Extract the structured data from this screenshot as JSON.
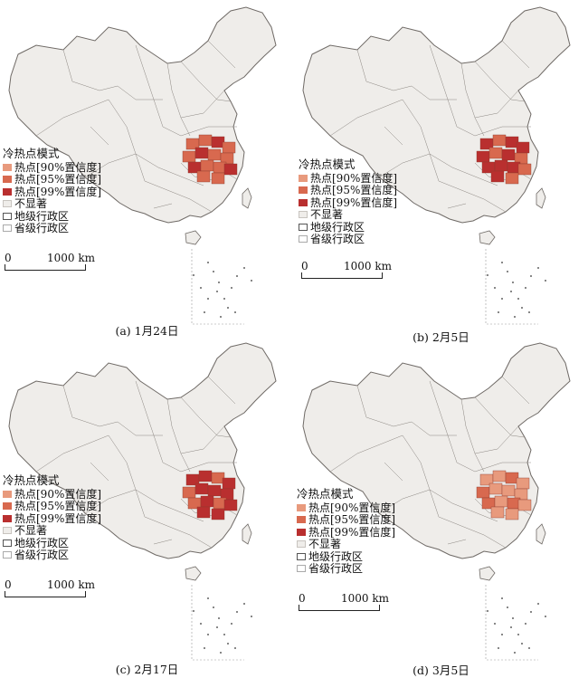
{
  "legend": {
    "title": "冷热点模式",
    "items": [
      {
        "key": "hot90",
        "label": "热点[90%置信度]",
        "color": "#e89a7d"
      },
      {
        "key": "hot95",
        "label": "热点[95%置信度]",
        "color": "#d8694f"
      },
      {
        "key": "hot99",
        "label": "热点[99%置信度]",
        "color": "#b92f2f"
      },
      {
        "key": "ns",
        "label": "不显著",
        "color": "#efedea"
      },
      {
        "key": "pref",
        "label": "地级行政区",
        "color": "#ffffff"
      },
      {
        "key": "prov",
        "label": "省级行政区",
        "color": "#ffffff"
      }
    ]
  },
  "scale": {
    "start": "0",
    "end": "1000 km"
  },
  "panels": [
    {
      "caption": "(a) 1月24日",
      "hotspot_levels": [
        "hot90",
        "hot95",
        "hot99"
      ],
      "dominant": "hot95"
    },
    {
      "caption": "(b) 2月5日",
      "hotspot_levels": [
        "hot95",
        "hot99"
      ],
      "dominant": "hot99"
    },
    {
      "caption": "(c) 2月17日",
      "hotspot_levels": [
        "hot95",
        "hot99"
      ],
      "dominant": "hot99"
    },
    {
      "caption": "(d) 3月5日",
      "hotspot_levels": [
        "hot90",
        "hot95"
      ],
      "dominant": "hot90"
    }
  ],
  "colors": {
    "not_significant": "#efedea",
    "boundary": "#8a8580",
    "background": "#ffffff"
  }
}
